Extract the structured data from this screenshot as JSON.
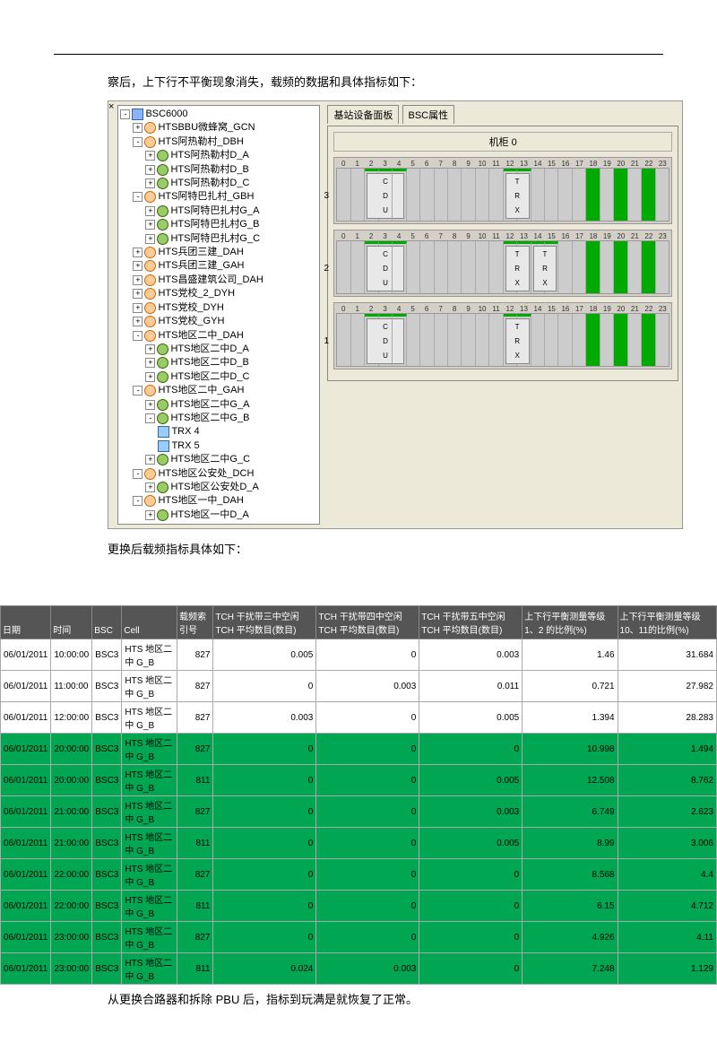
{
  "text": {
    "para1": "察后，上下行不平衡现象消失，载频的数据和具体指标如下：",
    "para2": "更换后载频指标具体如下：",
    "footnote": "从更换合路器和拆除 PBU 后，指标到玩满是就恢复了正常。"
  },
  "app": {
    "root": "BSC6000",
    "tabs": {
      "t1": "基站设备面板",
      "t2": "BSC属性"
    },
    "rack_title": "机柜 0",
    "tree": [
      {
        "l": "HTSBBU微蜂窝_GCN",
        "exp": "+",
        "ico": "bts"
      },
      {
        "l": "HTS阿热勒村_DBH",
        "exp": "-",
        "ico": "bts",
        "ch": [
          {
            "l": "HTS阿热勒村D_A",
            "exp": "+",
            "ico": "cell"
          },
          {
            "l": "HTS阿热勒村D_B",
            "exp": "+",
            "ico": "cell"
          },
          {
            "l": "HTS阿热勒村D_C",
            "exp": "+",
            "ico": "cell"
          }
        ]
      },
      {
        "l": "HTS阿特巴扎村_GBH",
        "exp": "-",
        "ico": "bts",
        "ch": [
          {
            "l": "HTS阿特巴扎村G_A",
            "exp": "+",
            "ico": "cell"
          },
          {
            "l": "HTS阿特巴扎村G_B",
            "exp": "+",
            "ico": "cell"
          },
          {
            "l": "HTS阿特巴扎村G_C",
            "exp": "+",
            "ico": "cell"
          }
        ]
      },
      {
        "l": "HTS兵团三建_DAH",
        "exp": "+",
        "ico": "bts"
      },
      {
        "l": "HTS兵团三建_GAH",
        "exp": "+",
        "ico": "bts"
      },
      {
        "l": "HTS昌盛建筑公司_DAH",
        "exp": "+",
        "ico": "bts"
      },
      {
        "l": "HTS党校_2_DYH",
        "exp": "+",
        "ico": "bts"
      },
      {
        "l": "HTS党校_DYH",
        "exp": "+",
        "ico": "bts"
      },
      {
        "l": "HTS党校_GYH",
        "exp": "+",
        "ico": "bts"
      },
      {
        "l": "HTS地区二中_DAH",
        "exp": "-",
        "ico": "bts",
        "ch": [
          {
            "l": "HTS地区二中D_A",
            "exp": "+",
            "ico": "cell"
          },
          {
            "l": "HTS地区二中D_B",
            "exp": "+",
            "ico": "cell"
          },
          {
            "l": "HTS地区二中D_C",
            "exp": "+",
            "ico": "cell"
          }
        ]
      },
      {
        "l": "HTS地区二中_GAH",
        "exp": "-",
        "ico": "bts",
        "ch": [
          {
            "l": "HTS地区二中G_A",
            "exp": "+",
            "ico": "cell"
          },
          {
            "l": "HTS地区二中G_B",
            "exp": "-",
            "ico": "cell",
            "ch": [
              {
                "l": "TRX 4",
                "ico": "trx"
              },
              {
                "l": "TRX 5",
                "ico": "trx"
              }
            ]
          },
          {
            "l": "HTS地区二中G_C",
            "exp": "+",
            "ico": "cell"
          }
        ]
      },
      {
        "l": "HTS地区公安处_DCH",
        "exp": "-",
        "ico": "bts",
        "ch": [
          {
            "l": "HTS地区公安处D_A",
            "exp": "+",
            "ico": "cell"
          }
        ]
      },
      {
        "l": "HTS地区一中_DAH",
        "exp": "-",
        "ico": "bts",
        "ch": [
          {
            "l": "HTS地区一中D_A",
            "exp": "+",
            "ico": "cell"
          }
        ]
      }
    ],
    "shelves": [
      {
        "num": "3",
        "cards": [
          {
            "slots": [
              2,
              3,
              4
            ],
            "t": [
              "C",
              "D",
              "U"
            ]
          },
          {
            "slots": [
              12,
              13
            ],
            "t": [
              "T",
              "R",
              "X"
            ]
          }
        ],
        "fill": [
          18,
          20,
          22
        ]
      },
      {
        "num": "2",
        "cards": [
          {
            "slots": [
              2,
              3,
              4
            ],
            "t": [
              "C",
              "D",
              "U"
            ]
          },
          {
            "slots": [
              12,
              13
            ],
            "t": [
              "T",
              "R",
              "X"
            ]
          },
          {
            "slots": [
              14,
              15
            ],
            "t": [
              "T",
              "R",
              "X"
            ]
          }
        ],
        "fill": [
          18,
          20,
          22
        ]
      },
      {
        "num": "1",
        "cards": [
          {
            "slots": [
              2,
              3,
              4
            ],
            "t": [
              "C",
              "D",
              "U"
            ]
          },
          {
            "slots": [
              12,
              13
            ],
            "t": [
              "T",
              "R",
              "X"
            ]
          }
        ],
        "fill": [
          18,
          20,
          22
        ]
      }
    ],
    "slot_count": 24
  },
  "table": {
    "headers": [
      "日期",
      "时间",
      "BSC",
      "Cell",
      "载频索引号",
      "TCH 干扰带三中空闲TCH 平均数目(数目)",
      "TCH 干扰带四中空闲TCH 平均数目(数目)",
      "TCH 干扰带五中空闲TCH 平均数目(数目)",
      "上下行平衡测量等级 1、2 的比例(%)",
      "上下行平衡测量等级 10、11的比例(%)"
    ],
    "rows": [
      {
        "g": 0,
        "c": [
          "06/01/2011",
          "10:00:00",
          "BSC3",
          "HTS 地区二中 G_B",
          "827",
          "0.005",
          "0",
          "0.003",
          "1.46",
          "31.684"
        ]
      },
      {
        "g": 0,
        "c": [
          "06/01/2011",
          "11:00:00",
          "BSC3",
          "HTS 地区二中 G_B",
          "827",
          "0",
          "0.003",
          "0.011",
          "0.721",
          "27.982"
        ]
      },
      {
        "g": 0,
        "c": [
          "06/01/2011",
          "12:00:00",
          "BSC3",
          "HTS 地区二中 G_B",
          "827",
          "0.003",
          "0",
          "0.005",
          "1.394",
          "28.283"
        ]
      },
      {
        "g": 1,
        "c": [
          "06/01/2011",
          "20:00:00",
          "BSC3",
          "HTS 地区二中 G_B",
          "827",
          "0",
          "0",
          "0",
          "10.998",
          "1.494"
        ]
      },
      {
        "g": 1,
        "c": [
          "06/01/2011",
          "20:00:00",
          "BSC3",
          "HTS 地区二中 G_B",
          "811",
          "0",
          "0",
          "0.005",
          "12.508",
          "8.762"
        ]
      },
      {
        "g": 1,
        "c": [
          "06/01/2011",
          "21:00:00",
          "BSC3",
          "HTS 地区二中 G_B",
          "827",
          "0",
          "0",
          "0.003",
          "6.749",
          "2.623"
        ]
      },
      {
        "g": 1,
        "c": [
          "06/01/2011",
          "21:00:00",
          "BSC3",
          "HTS 地区二中 G_B",
          "811",
          "0",
          "0",
          "0.005",
          "8.99",
          "3.006"
        ]
      },
      {
        "g": 1,
        "c": [
          "06/01/2011",
          "22:00:00",
          "BSC3",
          "HTS 地区二中 G_B",
          "827",
          "0",
          "0",
          "0",
          "8.568",
          "4.4"
        ]
      },
      {
        "g": 1,
        "c": [
          "06/01/2011",
          "22:00:00",
          "BSC3",
          "HTS 地区二中 G_B",
          "811",
          "0",
          "0",
          "0",
          "6.15",
          "4.712"
        ]
      },
      {
        "g": 1,
        "c": [
          "06/01/2011",
          "23:00:00",
          "BSC3",
          "HTS 地区二中 G_B",
          "827",
          "0",
          "0",
          "0",
          "4.926",
          "4.11"
        ]
      },
      {
        "g": 1,
        "c": [
          "06/01/2011",
          "23:00:00",
          "BSC3",
          "HTS 地区二中 G_B",
          "811",
          "0.024",
          "0.003",
          "0",
          "7.248",
          "1.129"
        ]
      }
    ],
    "col_align": [
      "l",
      "l",
      "l",
      "l",
      "r",
      "r",
      "r",
      "r",
      "r",
      "r"
    ]
  }
}
